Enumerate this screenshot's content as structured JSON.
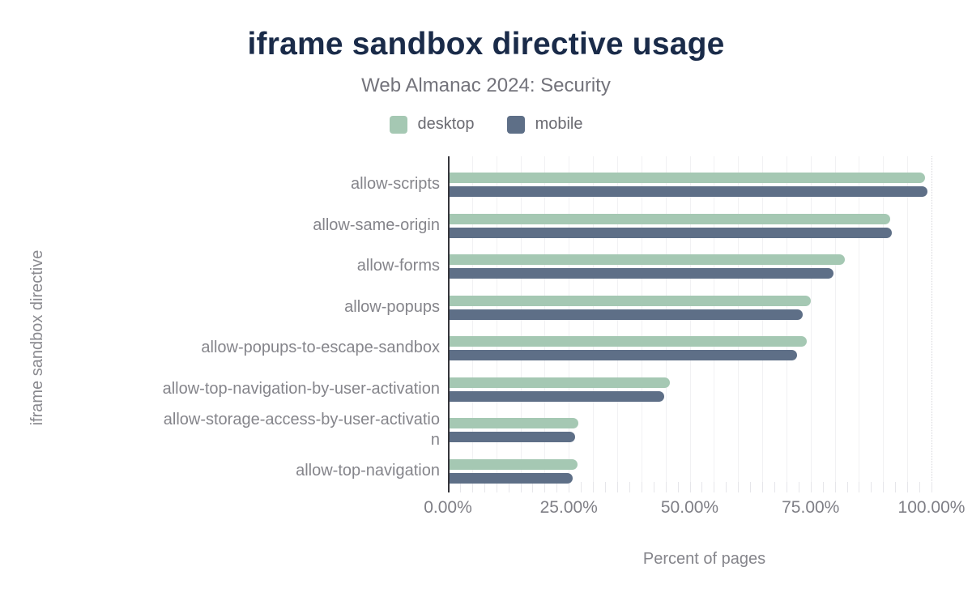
{
  "header": {
    "title": "iframe sandbox directive usage",
    "subtitle": "Web Almanac 2024: Security"
  },
  "chart_data": {
    "type": "bar",
    "orientation": "horizontal",
    "title": "iframe sandbox directive usage",
    "subtitle": "Web Almanac 2024: Security",
    "xlabel": "Percent of pages",
    "ylabel": "iframe sandbox directive",
    "unit": "%",
    "xlim": [
      0,
      106
    ],
    "x_ticks": [
      0,
      25,
      50,
      75,
      100
    ],
    "x_tick_labels": [
      "0.00%",
      "25.00%",
      "50.00%",
      "75.00%",
      "100.00%"
    ],
    "grid": "vertical minor gridlines every 5%, dotted line at 100%",
    "legend_position": "top",
    "categories": [
      "allow-scripts",
      "allow-same-origin",
      "allow-forms",
      "allow-popups",
      "allow-popups-to-escape-sandbox",
      "allow-top-navigation-by-user-activation",
      "allow-storage-access-by-user-activation",
      "allow-top-navigation"
    ],
    "category_display_lines": [
      [
        "allow-scripts"
      ],
      [
        "allow-same-origin"
      ],
      [
        "allow-forms"
      ],
      [
        "allow-popups"
      ],
      [
        "allow-popups-to-escape-sandbox"
      ],
      [
        "allow-top-navigation-by-user-activation"
      ],
      [
        "allow-storage-access-by-user-activatio",
        "n"
      ],
      [
        "allow-top-navigation"
      ]
    ],
    "series": [
      {
        "name": "desktop",
        "color": "#a5c8b3",
        "values": [
          98.3,
          91.1,
          81.8,
          74.7,
          73.8,
          45.6,
          26.7,
          26.4
        ]
      },
      {
        "name": "mobile",
        "color": "#5e6f87",
        "values": [
          98.8,
          91.5,
          79.4,
          73.1,
          71.8,
          44.4,
          25.9,
          25.4
        ]
      }
    ]
  },
  "colors": {
    "title": "#1a2b49",
    "desktop_bar": "#a5c8b3",
    "mobile_bar": "#5e6f87",
    "axis_line": "#35353b",
    "label_gray": "#85858b",
    "background": "#ffffff"
  }
}
